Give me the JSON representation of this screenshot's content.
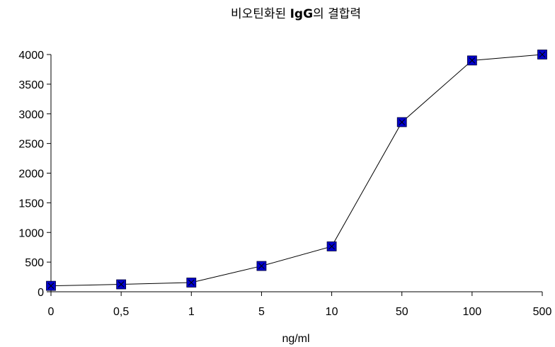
{
  "chart_data": {
    "type": "line",
    "title": {
      "prefix": "비오틴화된 ",
      "bold": "IgG",
      "suffix": "의 결합력"
    },
    "xlabel": "ng/ml",
    "ylabel": "",
    "categories": [
      "0",
      "0,5",
      "1",
      "5",
      "10",
      "50",
      "100",
      "500"
    ],
    "series": [
      {
        "values": [
          100,
          125,
          155,
          435,
          765,
          2860,
          3900,
          4000
        ],
        "color": "#0000cc",
        "marker": "square-x"
      }
    ],
    "ylim": [
      0,
      4000
    ],
    "yticks": [
      0,
      500,
      1000,
      1500,
      2000,
      2500,
      3000,
      3500,
      4000
    ],
    "grid": false,
    "legend": "none",
    "line_color": "#000000"
  }
}
